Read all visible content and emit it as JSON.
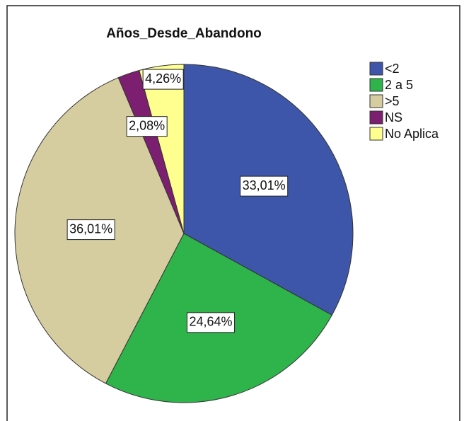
{
  "chart_data": {
    "type": "pie",
    "title": "Años_Desde_Abandono",
    "categories": [
      "<2",
      "2 a 5",
      ">5",
      "NS",
      "No Aplica"
    ],
    "values": [
      33.01,
      24.64,
      36.01,
      2.08,
      4.26
    ],
    "value_labels": [
      "33,01%",
      "24,64%",
      "36,01%",
      "2,08%",
      "4,26%"
    ],
    "colors": [
      "#3e56a9",
      "#2fb34b",
      "#d5cd9f",
      "#7c1f70",
      "#ffff8f"
    ],
    "legend": "right"
  }
}
